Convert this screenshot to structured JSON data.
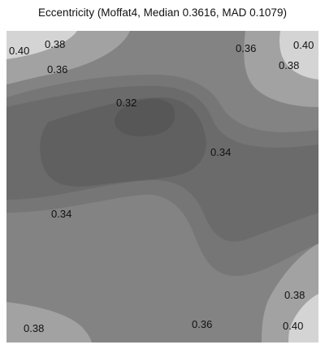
{
  "chart_data": {
    "type": "heatmap",
    "title": "Eccentricity (Moffat4, Median 0.3616, MAD 0.1079)",
    "xlabel": "",
    "ylabel": "",
    "grid": false,
    "legend": "none",
    "contour_levels": [
      0.32,
      0.33,
      0.34,
      0.35,
      0.36,
      0.37,
      0.38,
      0.39,
      0.4
    ],
    "level_colors": [
      "#575757",
      "#606060",
      "#6b6b6b",
      "#767676",
      "#838383",
      "#919191",
      "#a2a2a2",
      "#b6b6b6",
      "#d4d4d4"
    ],
    "contour_labels": [
      "0.40",
      "0.38",
      "0.36",
      "0.36",
      "0.40",
      "0.38",
      "0.32",
      "0.34",
      "0.34",
      "0.38",
      "0.36",
      "0.38",
      "0.40"
    ]
  }
}
